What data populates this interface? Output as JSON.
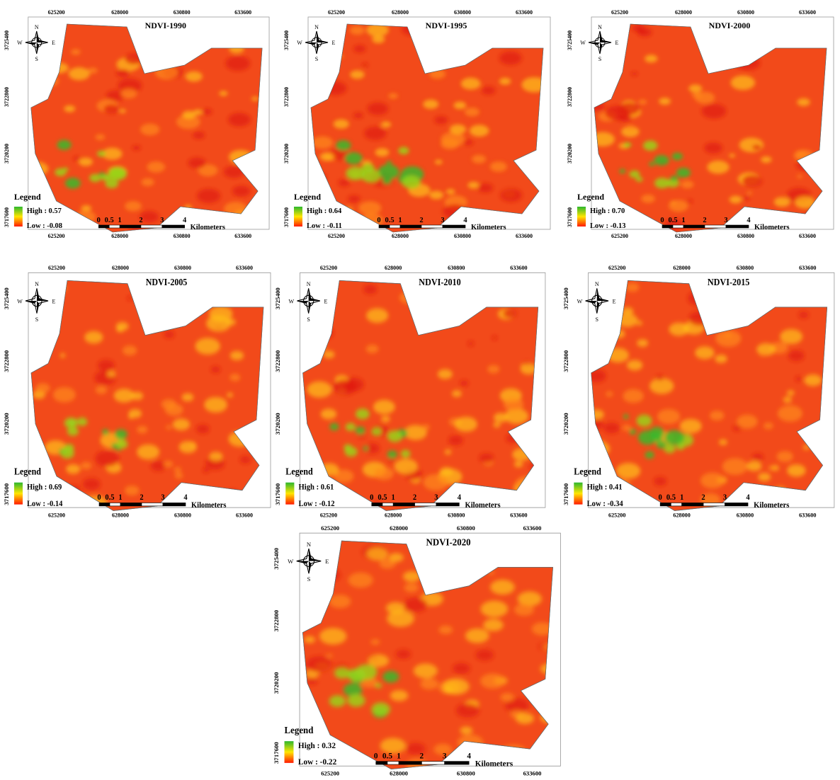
{
  "legend_title": "Legend",
  "scale_labels": [
    "0",
    "0.5",
    "1",
    "2",
    "3",
    "4"
  ],
  "scale_unit": "Kilometers",
  "x_ticks": [
    "625200",
    "628000",
    "630800",
    "633600"
  ],
  "y_ticks": [
    "3717600",
    "3720200",
    "3722800",
    "3725400"
  ],
  "compass": {
    "n": "N",
    "s": "S",
    "w": "W",
    "e": "E"
  },
  "panels": [
    {
      "title": "NDVI-1990",
      "high": "High : 0.57",
      "low": "Low : -0.08"
    },
    {
      "title": "NDVI-1995",
      "high": "High : 0.64",
      "low": "Low : -0.11"
    },
    {
      "title": "NDVI-2000",
      "high": "High : 0.70",
      "low": "Low : -0.13"
    },
    {
      "title": "NDVI-2005",
      "high": "High : 0.69",
      "low": "Low : -0.14"
    },
    {
      "title": "NDVI-2010",
      "high": "High : 0.61",
      "low": "Low : -0.12"
    },
    {
      "title": "NDVI-2015",
      "high": "High : 0.41",
      "low": "Low : -0.34"
    },
    {
      "title": "NDVI-2020",
      "high": "High : 0.32",
      "low": "Low : -0.22"
    }
  ]
}
